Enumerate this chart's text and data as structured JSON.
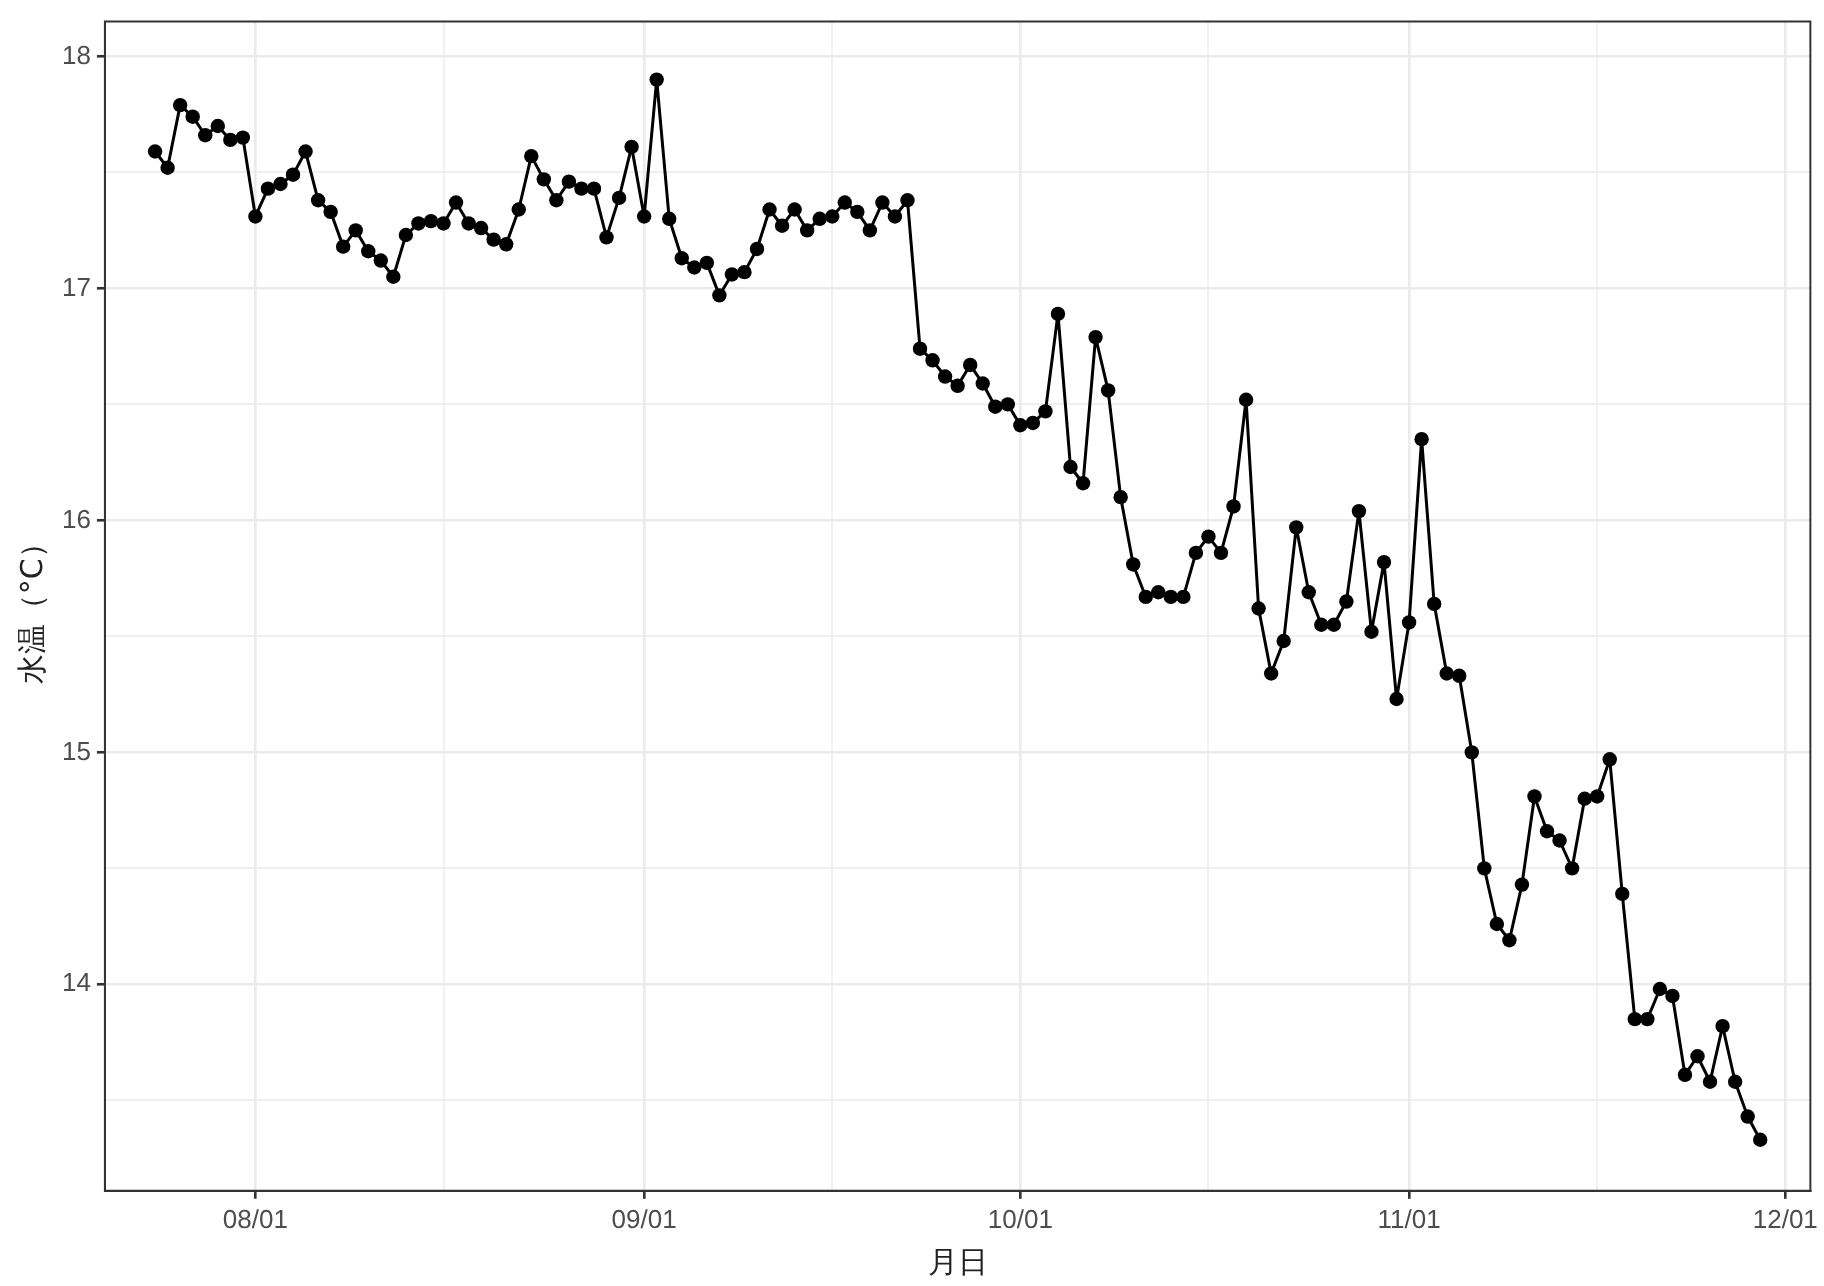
{
  "chart_data": {
    "type": "line",
    "xlabel": "月日",
    "ylabel": "水温（°C）",
    "marker": "circle",
    "grid": true,
    "legend": false,
    "x": [
      "--07-24",
      "--07-25",
      "--07-26",
      "--07-27",
      "--07-28",
      "--07-29",
      "--07-30",
      "--07-31",
      "--08-01",
      "--08-02",
      "--08-03",
      "--08-04",
      "--08-05",
      "--08-06",
      "--08-07",
      "--08-08",
      "--08-09",
      "--08-10",
      "--08-11",
      "--08-12",
      "--08-13",
      "--08-14",
      "--08-15",
      "--08-16",
      "--08-17",
      "--08-18",
      "--08-19",
      "--08-20",
      "--08-21",
      "--08-22",
      "--08-23",
      "--08-24",
      "--08-25",
      "--08-26",
      "--08-27",
      "--08-28",
      "--08-29",
      "--08-30",
      "--08-31",
      "--09-01",
      "--09-02",
      "--09-03",
      "--09-04",
      "--09-05",
      "--09-06",
      "--09-07",
      "--09-08",
      "--09-09",
      "--09-10",
      "--09-11",
      "--09-12",
      "--09-13",
      "--09-14",
      "--09-15",
      "--09-16",
      "--09-17",
      "--09-18",
      "--09-19",
      "--09-20",
      "--09-21",
      "--09-22",
      "--09-23",
      "--09-24",
      "--09-25",
      "--09-26",
      "--09-27",
      "--09-28",
      "--09-29",
      "--09-30",
      "--10-01",
      "--10-02",
      "--10-03",
      "--10-04",
      "--10-05",
      "--10-06",
      "--10-07",
      "--10-08",
      "--10-09",
      "--10-10",
      "--10-11",
      "--10-12",
      "--10-13",
      "--10-14",
      "--10-15",
      "--10-16",
      "--10-17",
      "--10-18",
      "--10-19",
      "--10-20",
      "--10-21",
      "--10-22",
      "--10-23",
      "--10-24",
      "--10-25",
      "--10-26",
      "--10-27",
      "--10-28",
      "--10-29",
      "--10-30",
      "--10-31",
      "--11-01",
      "--11-02",
      "--11-03",
      "--11-04",
      "--11-05",
      "--11-06",
      "--11-07",
      "--11-08",
      "--11-09",
      "--11-10",
      "--11-11",
      "--11-12",
      "--11-13",
      "--11-14",
      "--11-15",
      "--11-16",
      "--11-17",
      "--11-18",
      "--11-19",
      "--11-20",
      "--11-21",
      "--11-22",
      "--11-23",
      "--11-24",
      "--11-25",
      "--11-26",
      "--11-27",
      "--11-28",
      "--11-29"
    ],
    "series": [
      {
        "color": "#000000",
        "values": [
          17.59,
          17.52,
          17.79,
          17.74,
          17.66,
          17.7,
          17.64,
          17.65,
          17.31,
          17.43,
          17.45,
          17.49,
          17.59,
          17.38,
          17.33,
          17.18,
          17.25,
          17.16,
          17.12,
          17.05,
          17.23,
          17.28,
          17.29,
          17.28,
          17.37,
          17.28,
          17.26,
          17.21,
          17.19,
          17.34,
          17.57,
          17.47,
          17.38,
          17.46,
          17.43,
          17.43,
          17.22,
          17.39,
          17.61,
          17.31,
          17.9,
          17.3,
          17.13,
          17.09,
          17.11,
          16.97,
          17.06,
          17.07,
          17.17,
          17.34,
          17.27,
          17.34,
          17.25,
          17.3,
          17.31,
          17.37,
          17.33,
          17.25,
          17.37,
          17.31,
          17.38,
          16.74,
          16.69,
          16.62,
          16.58,
          16.67,
          16.59,
          16.49,
          16.5,
          16.41,
          16.42,
          16.47,
          16.89,
          16.23,
          16.16,
          16.79,
          16.56,
          16.1,
          15.81,
          15.67,
          15.69,
          15.67,
          15.67,
          15.86,
          15.93,
          15.86,
          16.06,
          16.52,
          15.62,
          15.34,
          15.48,
          15.97,
          15.69,
          15.55,
          15.55,
          15.65,
          16.04,
          15.52,
          15.82,
          15.23,
          15.56,
          16.35,
          15.64,
          15.34,
          15.33,
          15.0,
          14.5,
          14.26,
          14.19,
          14.43,
          14.81,
          14.66,
          14.62,
          14.5,
          14.8,
          14.81,
          14.97,
          14.39,
          13.85,
          13.85,
          13.98,
          13.95,
          13.61,
          13.69,
          13.58,
          13.82,
          13.58,
          13.43,
          13.33
        ]
      }
    ],
    "xlim": [
      "--07-20",
      "--12-03"
    ],
    "xticks": [
      {
        "value": "--08-01",
        "label": "08/01"
      },
      {
        "value": "--08-16",
        "label": null
      },
      {
        "value": "--09-01",
        "label": "09/01"
      },
      {
        "value": "--09-16",
        "label": null
      },
      {
        "value": "--10-01",
        "label": "10/01"
      },
      {
        "value": "--10-16",
        "label": null
      },
      {
        "value": "--11-01",
        "label": "11/01"
      },
      {
        "value": "--11-16",
        "label": null
      },
      {
        "value": "--12-01",
        "label": "12/01"
      }
    ],
    "ylim": [
      13.11,
      18.15
    ],
    "yticks": [
      {
        "value": 13.5,
        "label": null
      },
      14,
      {
        "value": 14.5,
        "label": null
      },
      15,
      {
        "value": 15.5,
        "label": null
      },
      16,
      {
        "value": 16.5,
        "label": null
      },
      17,
      {
        "value": 17.5,
        "label": null
      },
      18
    ]
  }
}
